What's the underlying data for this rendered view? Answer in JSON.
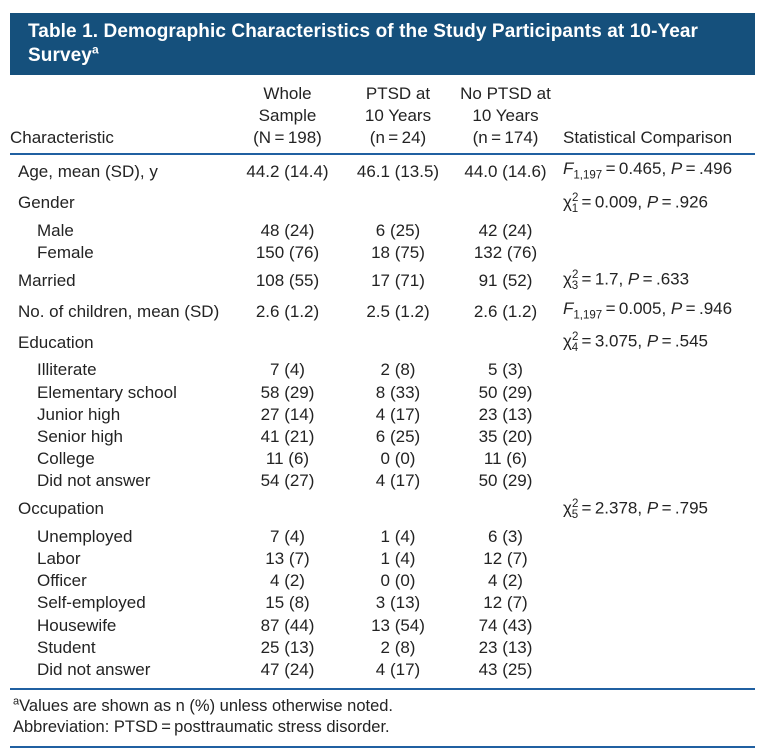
{
  "colors": {
    "title_bar_bg": "#15507C",
    "title_text": "#FFFFFF",
    "rule_blue": "#2060A1",
    "text": "#232323"
  },
  "title": {
    "line1": "Table 1. Demographic Characteristics of the Study Participants at 10-Year",
    "line2": "Survey",
    "marker": "a"
  },
  "table": {
    "header": {
      "characteristic": "Characteristic",
      "whole_sample": [
        "Whole",
        "Sample",
        "(N = 198)"
      ],
      "ptsd": [
        "PTSD at",
        "10 Years",
        "(n = 24)"
      ],
      "no_ptsd": [
        "No PTSD at",
        "10 Years",
        "(n = 174)"
      ],
      "statistical_comparison": "Statistical Comparison"
    },
    "rows": [
      {
        "label": "Age, mean (SD), y",
        "indent": false,
        "whole": "44.2 (14.4)",
        "ptsd": "46.1 (13.5)",
        "no_ptsd": "44.0 (14.6)",
        "stat_html": "<i>F</i><sub>1,197</sub> = 0.465, <i>P</i> = .496"
      },
      {
        "label": "Gender",
        "indent": false,
        "whole": "",
        "ptsd": "",
        "no_ptsd": "",
        "stat_html": "χ<sup>2</sup><sub>1</sub> = 0.009, <i>P</i> = .926"
      },
      {
        "label": "Male",
        "indent": true,
        "whole": "48 (24)",
        "ptsd": "6 (25)",
        "no_ptsd": "42 (24)",
        "stat_html": ""
      },
      {
        "label": "Female",
        "indent": true,
        "whole": "150 (76)",
        "ptsd": "18 (75)",
        "no_ptsd": "132 (76)",
        "stat_html": ""
      },
      {
        "label": "Married",
        "indent": false,
        "whole": "108 (55)",
        "ptsd": "17 (71)",
        "no_ptsd": "91 (52)",
        "stat_html": "χ<sup>2</sup><sub>3</sub> = 1.7, <i>P</i> = .633"
      },
      {
        "label": "No. of children, mean (SD)",
        "indent": false,
        "whole": "2.6 (1.2)",
        "ptsd": "2.5 (1.2)",
        "no_ptsd": "2.6 (1.2)",
        "stat_html": "<i>F</i><sub>1,197</sub> = 0.005, <i>P</i> = .946"
      },
      {
        "label": "Education",
        "indent": false,
        "whole": "",
        "ptsd": "",
        "no_ptsd": "",
        "stat_html": "χ<sup>2</sup><sub>4</sub> = 3.075, <i>P</i> = .545"
      },
      {
        "label": "Illiterate",
        "indent": true,
        "whole": "7 (4)",
        "ptsd": "2 (8)",
        "no_ptsd": "5 (3)",
        "stat_html": ""
      },
      {
        "label": "Elementary school",
        "indent": true,
        "whole": "58 (29)",
        "ptsd": "8 (33)",
        "no_ptsd": "50 (29)",
        "stat_html": ""
      },
      {
        "label": "Junior high",
        "indent": true,
        "whole": "27 (14)",
        "ptsd": "4 (17)",
        "no_ptsd": "23 (13)",
        "stat_html": ""
      },
      {
        "label": "Senior high",
        "indent": true,
        "whole": "41 (21)",
        "ptsd": "6 (25)",
        "no_ptsd": "35 (20)",
        "stat_html": ""
      },
      {
        "label": "College",
        "indent": true,
        "whole": "11 (6)",
        "ptsd": "0 (0)",
        "no_ptsd": "11 (6)",
        "stat_html": ""
      },
      {
        "label": "Did not answer",
        "indent": true,
        "whole": "54 (27)",
        "ptsd": "4 (17)",
        "no_ptsd": "50 (29)",
        "stat_html": ""
      },
      {
        "label": "Occupation",
        "indent": false,
        "whole": "",
        "ptsd": "",
        "no_ptsd": "",
        "stat_html": "χ<sup>2</sup><sub>5</sub> = 2.378, <i>P</i> = .795"
      },
      {
        "label": "Unemployed",
        "indent": true,
        "whole": "7 (4)",
        "ptsd": "1 (4)",
        "no_ptsd": "6 (3)",
        "stat_html": ""
      },
      {
        "label": "Labor",
        "indent": true,
        "whole": "13 (7)",
        "ptsd": "1 (4)",
        "no_ptsd": "12 (7)",
        "stat_html": ""
      },
      {
        "label": "Officer",
        "indent": true,
        "whole": "4 (2)",
        "ptsd": "0 (0)",
        "no_ptsd": "4 (2)",
        "stat_html": ""
      },
      {
        "label": "Self-employed",
        "indent": true,
        "whole": "15 (8)",
        "ptsd": "3 (13)",
        "no_ptsd": "12 (7)",
        "stat_html": ""
      },
      {
        "label": "Housewife",
        "indent": true,
        "whole": "87 (44)",
        "ptsd": "13 (54)",
        "no_ptsd": "74 (43)",
        "stat_html": ""
      },
      {
        "label": "Student",
        "indent": true,
        "whole": "25 (13)",
        "ptsd": "2 (8)",
        "no_ptsd": "23 (13)",
        "stat_html": ""
      },
      {
        "label": "Did not answer",
        "indent": true,
        "whole": "47 (24)",
        "ptsd": "4 (17)",
        "no_ptsd": "43 (25)",
        "stat_html": ""
      }
    ]
  },
  "footnotes": [
    {
      "marker": "a",
      "text": "Values are shown as n (%) unless otherwise noted."
    },
    {
      "marker": "",
      "text": "Abbreviation: PTSD = posttraumatic stress disorder."
    }
  ]
}
